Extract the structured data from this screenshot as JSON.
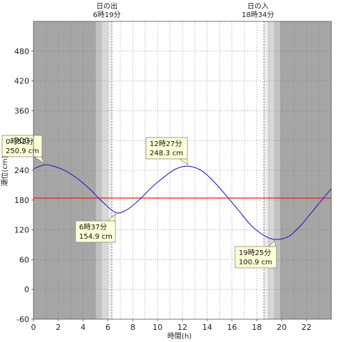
{
  "chart_data": {
    "type": "line",
    "xlabel": "時間(h)",
    "ylabel": "潮位(cm)",
    "xlim": [
      0,
      24
    ],
    "ylim": [
      -60,
      540
    ],
    "xticks": [
      0,
      2,
      4,
      6,
      8,
      10,
      12,
      14,
      16,
      18,
      20,
      22
    ],
    "yticks": [
      -60,
      0,
      60,
      120,
      180,
      240,
      300,
      360,
      420,
      480
    ],
    "grid": true,
    "reference_line": {
      "value": 184,
      "color": "#dd2222"
    },
    "line_color": "#2222cc",
    "sunrise": {
      "title": "日の出",
      "time": "6時19分",
      "hour": 6.317
    },
    "sunset": {
      "title": "日の入",
      "time": "18時34分",
      "hour": 18.567
    },
    "series": [
      {
        "x": [
          0,
          0.87,
          1.5,
          2.5,
          3.5,
          4.5,
          5.5,
          6.62,
          7.5,
          8.5,
          9.5,
          10.5,
          11.5,
          12.45,
          13.5,
          14.5,
          15.5,
          16.5,
          17.5,
          18.5,
          19.42,
          20.5,
          21.5,
          22.5,
          23.5,
          24
        ],
        "values": [
          243,
          250.9,
          249,
          240,
          224,
          203,
          178,
          154.9,
          160,
          180,
          205,
          226,
          243,
          248.3,
          240,
          218,
          190,
          160,
          130,
          110,
          100.9,
          106,
          128,
          158,
          188,
          203
        ]
      }
    ],
    "annotations": [
      {
        "time": "0時52分",
        "value": "250.9 cm",
        "x": 0.87,
        "y": 250.9
      },
      {
        "time": "6時37分",
        "value": "154.9 cm",
        "x": 6.62,
        "y": 154.9
      },
      {
        "time": "12時27分",
        "value": "248.3 cm",
        "x": 12.45,
        "y": 248.3
      },
      {
        "time": "19時25分",
        "value": "100.9 cm",
        "x": 19.42,
        "y": 100.9
      }
    ]
  }
}
